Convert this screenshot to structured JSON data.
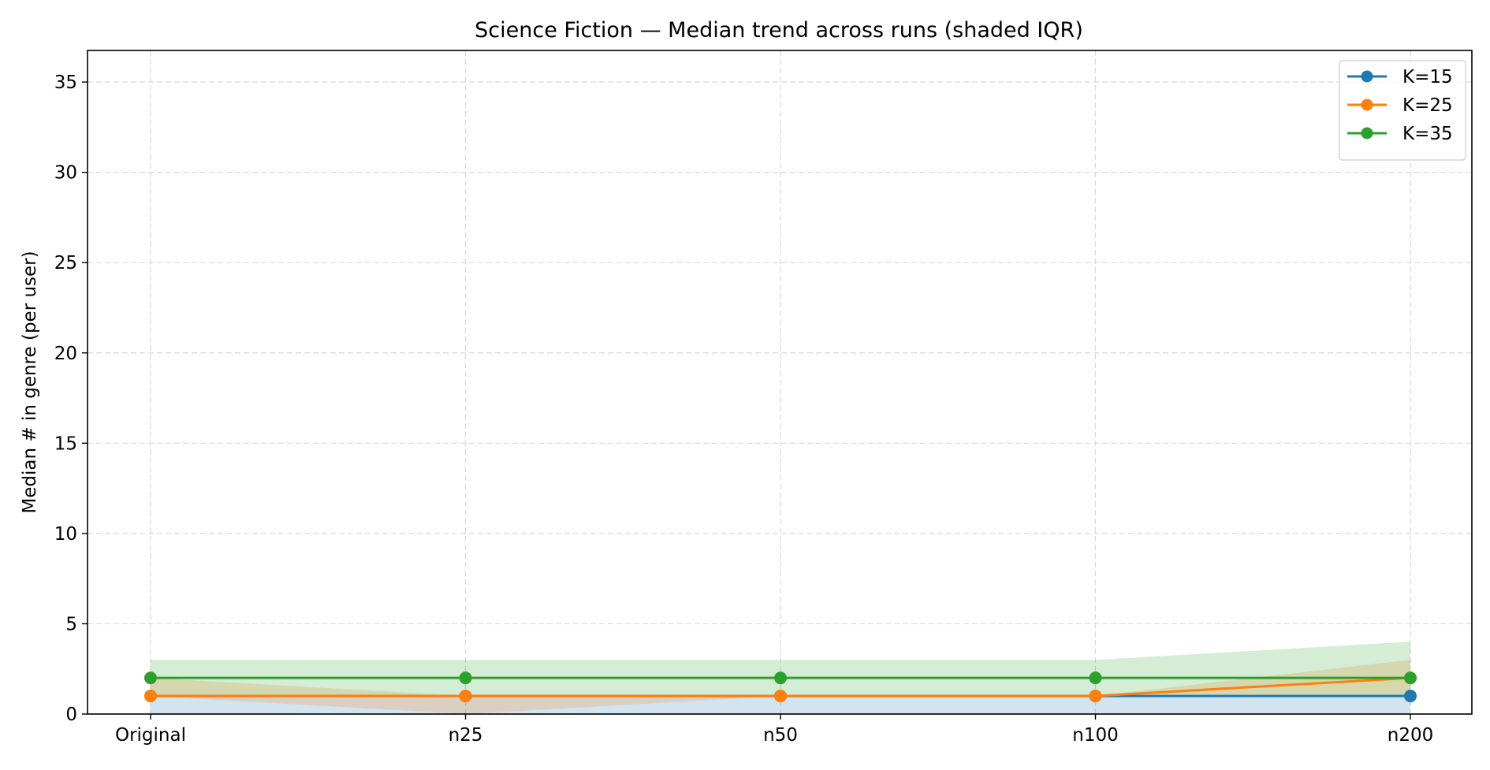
{
  "chart_data": {
    "type": "line",
    "title": "Science Fiction — Median trend across runs (shaded IQR)",
    "xlabel": "",
    "ylabel": "Median # in genre (per user)",
    "categories": [
      "Original",
      "n25",
      "n50",
      "n100",
      "n200"
    ],
    "ylim": [
      0,
      36.75
    ],
    "yticks": [
      0,
      5,
      10,
      15,
      20,
      25,
      30,
      35
    ],
    "ytick_labels": [
      "0",
      "5",
      "10",
      "15",
      "20",
      "25",
      "30",
      "35"
    ],
    "grid": true,
    "legend_position": "top-right",
    "series": [
      {
        "name": "K=15",
        "color": "#1f77b4",
        "values": [
          1,
          1,
          1,
          1,
          1
        ],
        "iqr_low": [
          0,
          0,
          0,
          0,
          0
        ],
        "iqr_high": [
          1,
          1,
          1,
          1,
          1
        ]
      },
      {
        "name": "K=25",
        "color": "#ff7f0e",
        "values": [
          1,
          1,
          1,
          1,
          2
        ],
        "iqr_low": [
          1,
          0,
          1,
          1,
          1
        ],
        "iqr_high": [
          2,
          1,
          1,
          1,
          3
        ]
      },
      {
        "name": "K=35",
        "color": "#2ca02c",
        "values": [
          2,
          2,
          2,
          2,
          2
        ],
        "iqr_low": [
          1,
          1,
          1,
          1,
          1
        ],
        "iqr_high": [
          3,
          3,
          3,
          3,
          4
        ]
      }
    ]
  }
}
